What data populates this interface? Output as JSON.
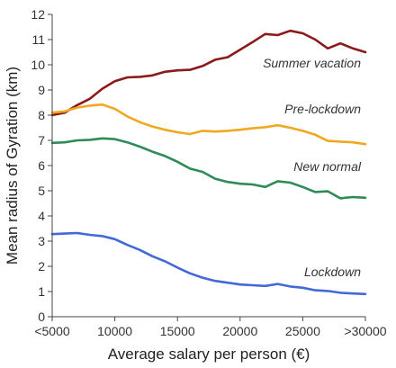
{
  "chart_data": {
    "type": "line",
    "xlabel": "Average salary per person (€)",
    "ylabel": "Mean radius of Gyration (km)",
    "ylim": [
      0,
      12
    ],
    "xlim": [
      5000,
      30000
    ],
    "y_ticks": [
      "0",
      "1",
      "2",
      "3",
      "4",
      "5",
      "6",
      "7",
      "8",
      "9",
      "10",
      "11",
      "12"
    ],
    "x_ticks": [
      {
        "value": 5000,
        "label": "<5000"
      },
      {
        "value": 10000,
        "label": "10000"
      },
      {
        "value": 15000,
        "label": "15000"
      },
      {
        "value": 20000,
        "label": "20000"
      },
      {
        "value": 25000,
        "label": "25000"
      },
      {
        "value": 30000,
        "label": ">30000"
      }
    ],
    "grid": false,
    "series": [
      {
        "name": "Summer vacation",
        "color": "#8b1a1a",
        "x": [
          5000,
          6000,
          7000,
          8000,
          9000,
          10000,
          11000,
          12000,
          13000,
          14000,
          15000,
          16000,
          17000,
          18000,
          19000,
          20000,
          21000,
          22000,
          23000,
          24000,
          25000,
          26000,
          27000,
          28000,
          29000,
          30000
        ],
        "y": [
          8.0,
          8.1,
          8.4,
          8.65,
          9.05,
          9.35,
          9.5,
          9.52,
          9.58,
          9.72,
          9.78,
          9.8,
          9.95,
          10.2,
          10.3,
          10.6,
          10.9,
          11.22,
          11.18,
          11.35,
          11.25,
          11.0,
          10.65,
          10.85,
          10.65,
          10.5
        ]
      },
      {
        "name": "Pre-lockdown",
        "color": "#f0a820",
        "x": [
          5000,
          6000,
          7000,
          8000,
          9000,
          10000,
          11000,
          12000,
          13000,
          14000,
          15000,
          16000,
          17000,
          18000,
          19000,
          20000,
          21000,
          22000,
          23000,
          24000,
          25000,
          26000,
          27000,
          28000,
          29000,
          30000
        ],
        "y": [
          8.1,
          8.15,
          8.3,
          8.38,
          8.42,
          8.25,
          7.95,
          7.72,
          7.55,
          7.42,
          7.32,
          7.25,
          7.38,
          7.35,
          7.38,
          7.42,
          7.48,
          7.52,
          7.6,
          7.5,
          7.38,
          7.22,
          6.98,
          6.95,
          6.92,
          6.85
        ]
      },
      {
        "name": "New normal",
        "color": "#2e8b57",
        "x": [
          5000,
          6000,
          7000,
          8000,
          9000,
          10000,
          11000,
          12000,
          13000,
          14000,
          15000,
          16000,
          17000,
          18000,
          19000,
          20000,
          21000,
          22000,
          23000,
          24000,
          25000,
          26000,
          27000,
          28000,
          29000,
          30000
        ],
        "y": [
          6.9,
          6.92,
          7.0,
          7.02,
          7.08,
          7.05,
          6.92,
          6.75,
          6.55,
          6.38,
          6.15,
          5.88,
          5.75,
          5.48,
          5.35,
          5.28,
          5.25,
          5.15,
          5.38,
          5.32,
          5.15,
          4.95,
          4.98,
          4.7,
          4.75,
          4.72
        ]
      },
      {
        "name": "Lockdown",
        "color": "#4169d8",
        "x": [
          5000,
          6000,
          7000,
          8000,
          9000,
          10000,
          11000,
          12000,
          13000,
          14000,
          15000,
          16000,
          17000,
          18000,
          19000,
          20000,
          21000,
          22000,
          23000,
          24000,
          25000,
          26000,
          27000,
          28000,
          29000,
          30000
        ],
        "y": [
          3.28,
          3.3,
          3.32,
          3.25,
          3.2,
          3.08,
          2.85,
          2.65,
          2.4,
          2.2,
          1.95,
          1.72,
          1.55,
          1.42,
          1.35,
          1.28,
          1.25,
          1.22,
          1.3,
          1.2,
          1.15,
          1.05,
          1.02,
          0.95,
          0.92,
          0.9
        ]
      }
    ]
  }
}
